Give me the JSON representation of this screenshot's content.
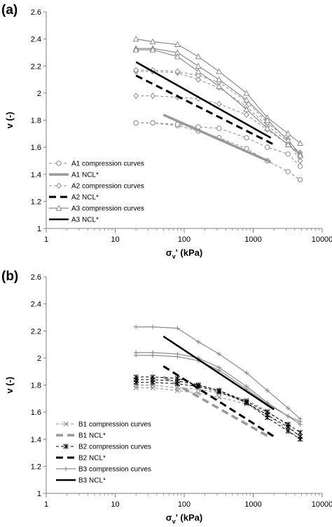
{
  "chart_data": [
    {
      "type": "line",
      "panel_label": "(a)",
      "xlabel_base": "σ",
      "xlabel_sub": "v",
      "xlabel_rest": "' (kPa)",
      "ylabel": "v (-)",
      "xscale": "log",
      "xlim": [
        1,
        10000
      ],
      "ylim": [
        1,
        2.6
      ],
      "x_ticks": [
        1,
        10,
        100,
        1000,
        10000
      ],
      "x_tick_labels": [
        "1",
        "10",
        "100",
        "1000",
        "10000"
      ],
      "y_ticks": [
        1,
        1.2,
        1.4,
        1.6,
        1.8,
        2,
        2.2,
        2.4,
        2.6
      ],
      "y_tick_labels": [
        "1",
        "1.2",
        "1.4",
        "1.6",
        "1.8",
        "2",
        "2.2",
        "2.4",
        "2.6"
      ],
      "grid": false,
      "legend_position": "bottom-left",
      "legend": [
        {
          "label": "A1 compression curves",
          "color": "#8c8c8c",
          "dash": "4,3",
          "width": 1,
          "marker": "circle"
        },
        {
          "label": "A1 NCL*",
          "color": "#999999",
          "dash": "",
          "width": 3.5,
          "marker": "none"
        },
        {
          "label": "A2 compression curves",
          "color": "#8c8c8c",
          "dash": "4,3",
          "width": 1,
          "marker": "diamond"
        },
        {
          "label": "A2 NCL*",
          "color": "#000000",
          "dash": "10,6",
          "width": 3,
          "marker": "none"
        },
        {
          "label": "A3 compression curves",
          "color": "#8c8c8c",
          "dash": "",
          "width": 1.2,
          "marker": "triangle"
        },
        {
          "label": "A3 NCL*",
          "color": "#000000",
          "dash": "",
          "width": 2.5,
          "marker": "none"
        }
      ],
      "series": [
        {
          "style": 0,
          "x": [
            20,
            35,
            80,
            160,
            320,
            800,
            1600,
            3200,
            4800
          ],
          "y": [
            1.78,
            1.78,
            1.76,
            1.72,
            1.67,
            1.59,
            1.5,
            1.42,
            1.36
          ]
        },
        {
          "style": 0,
          "x": [
            20,
            35,
            80,
            160,
            320,
            800,
            1600,
            3200,
            4800
          ],
          "y": [
            1.78,
            1.78,
            1.77,
            1.75,
            1.74,
            1.67,
            1.6,
            1.55,
            1.46
          ]
        },
        {
          "style": 1,
          "x": [
            50,
            1800
          ],
          "y": [
            1.84,
            1.49
          ]
        },
        {
          "style": 2,
          "x": [
            20,
            35,
            80,
            160,
            320,
            800,
            1600,
            3200,
            4800
          ],
          "y": [
            1.98,
            1.98,
            1.97,
            1.96,
            1.92,
            1.84,
            1.73,
            1.62,
            1.56
          ]
        },
        {
          "style": 2,
          "x": [
            20,
            35,
            80,
            160,
            320,
            800,
            1600,
            3200,
            4800
          ],
          "y": [
            2.16,
            2.16,
            2.15,
            2.1,
            2.04,
            1.9,
            1.76,
            1.64,
            1.5
          ]
        },
        {
          "style": 2,
          "x": [
            20,
            35,
            80,
            160,
            320,
            800,
            1600,
            3200,
            4800
          ],
          "y": [
            2.17,
            2.17,
            2.16,
            2.13,
            2.08,
            1.94,
            1.78,
            1.66,
            1.53
          ]
        },
        {
          "style": 3,
          "x": [
            20,
            2000
          ],
          "y": [
            2.13,
            1.62
          ]
        },
        {
          "style": 4,
          "x": [
            20,
            35,
            80,
            160,
            320,
            800,
            1600,
            3200,
            4800
          ],
          "y": [
            2.4,
            2.38,
            2.36,
            2.27,
            2.16,
            2.0,
            1.82,
            1.7,
            1.63
          ]
        },
        {
          "style": 4,
          "x": [
            20,
            35,
            80,
            160,
            320,
            800,
            1600,
            3200,
            4800
          ],
          "y": [
            2.33,
            2.33,
            2.3,
            2.2,
            2.1,
            1.95,
            1.8,
            1.65,
            1.55
          ]
        },
        {
          "style": 4,
          "x": [
            20,
            35,
            80,
            160,
            320,
            800,
            1600,
            3200,
            4800
          ],
          "y": [
            2.32,
            2.32,
            2.27,
            2.16,
            2.05,
            1.88,
            1.74,
            1.62,
            1.54
          ]
        },
        {
          "style": 5,
          "x": [
            20,
            1800
          ],
          "y": [
            2.23,
            1.67
          ]
        }
      ]
    },
    {
      "type": "line",
      "panel_label": "(b)",
      "xlabel_base": "σ",
      "xlabel_sub": "v",
      "xlabel_rest": "' (kPa)",
      "ylabel": "v (-)",
      "xscale": "log",
      "xlim": [
        1,
        10000
      ],
      "ylim": [
        1,
        2.6
      ],
      "x_ticks": [
        1,
        10,
        100,
        1000,
        10000
      ],
      "x_tick_labels": [
        "1",
        "10",
        "100",
        "1000",
        "10000"
      ],
      "y_ticks": [
        1,
        1.2,
        1.4,
        1.6,
        1.8,
        2,
        2.2,
        2.4,
        2.6
      ],
      "y_tick_labels": [
        "1",
        "1.2",
        "1.4",
        "1.6",
        "1.8",
        "2",
        "2.2",
        "2.4",
        "2.6"
      ],
      "grid": false,
      "legend_position": "bottom-left",
      "legend": [
        {
          "label": "B1 compression curves",
          "color": "#8c8c8c",
          "dash": "4,3",
          "width": 1,
          "marker": "x"
        },
        {
          "label": "B1 NCL*",
          "color": "#999999",
          "dash": "10,6",
          "width": 3.5,
          "marker": "none"
        },
        {
          "label": "B2 compression curves",
          "color": "#000000",
          "dash": "4,3",
          "width": 1,
          "marker": "star"
        },
        {
          "label": "B2 NCL*",
          "color": "#000000",
          "dash": "10,6",
          "width": 3,
          "marker": "none"
        },
        {
          "label": "B3 compression curves",
          "color": "#8c8c8c",
          "dash": "",
          "width": 1.2,
          "marker": "plus"
        },
        {
          "label": "B3 NCL*",
          "color": "#000000",
          "dash": "",
          "width": 2.5,
          "marker": "none"
        }
      ],
      "series": [
        {
          "style": 0,
          "x": [
            20,
            35,
            80,
            160,
            320,
            800,
            1600,
            3200,
            4800
          ],
          "y": [
            1.8,
            1.8,
            1.78,
            1.77,
            1.74,
            1.69,
            1.61,
            1.5,
            1.42
          ]
        },
        {
          "style": 0,
          "x": [
            20,
            35,
            80,
            160,
            320,
            800,
            1600,
            3200,
            4800
          ],
          "y": [
            1.78,
            1.78,
            1.76,
            1.74,
            1.71,
            1.66,
            1.58,
            1.47,
            1.4
          ]
        },
        {
          "style": 1,
          "x": [
            50,
            1800
          ],
          "y": [
            1.86,
            1.41
          ]
        },
        {
          "style": 2,
          "x": [
            20,
            35,
            80,
            160,
            320,
            800,
            1600,
            3200,
            4800
          ],
          "y": [
            1.86,
            1.86,
            1.85,
            1.8,
            1.76,
            1.67,
            1.58,
            1.49,
            1.42
          ]
        },
        {
          "style": 2,
          "x": [
            20,
            35,
            80,
            160,
            320,
            800,
            1600,
            3200,
            4800
          ],
          "y": [
            1.84,
            1.84,
            1.83,
            1.8,
            1.76,
            1.68,
            1.6,
            1.51,
            1.45
          ]
        },
        {
          "style": 2,
          "x": [
            20,
            35,
            80,
            160,
            320,
            800,
            1600,
            3200,
            4800
          ],
          "y": [
            1.82,
            1.82,
            1.81,
            1.79,
            1.75,
            1.67,
            1.56,
            1.46,
            1.4
          ]
        },
        {
          "style": 3,
          "x": [
            50,
            2000
          ],
          "y": [
            1.94,
            1.42
          ]
        },
        {
          "style": 4,
          "x": [
            20,
            35,
            80,
            160,
            320,
            800,
            1600,
            3200,
            4800
          ],
          "y": [
            2.23,
            2.23,
            2.22,
            2.12,
            2.03,
            1.89,
            1.76,
            1.63,
            1.55
          ]
        },
        {
          "style": 4,
          "x": [
            20,
            35,
            80,
            160,
            320,
            800,
            1600,
            3200,
            4800
          ],
          "y": [
            2.04,
            2.04,
            2.03,
            2.0,
            1.93,
            1.79,
            1.67,
            1.57,
            1.53
          ]
        },
        {
          "style": 4,
          "x": [
            20,
            35,
            80,
            160,
            320,
            800,
            1600,
            3200,
            4800
          ],
          "y": [
            2.02,
            2.02,
            2.01,
            1.98,
            1.91,
            1.77,
            1.66,
            1.57,
            1.51
          ]
        },
        {
          "style": 5,
          "x": [
            50,
            2000
          ],
          "y": [
            2.16,
            1.62
          ]
        }
      ]
    }
  ]
}
